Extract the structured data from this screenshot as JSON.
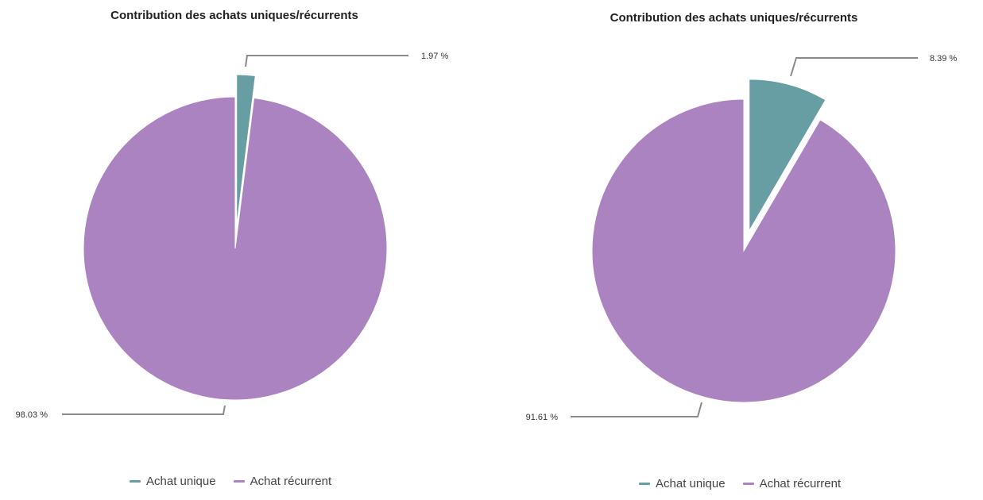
{
  "chart_data": [
    {
      "type": "pie",
      "title": "Contribution des achats uniques/récurrents",
      "categories": [
        "Achat unique",
        "Achat récurrent"
      ],
      "values": [
        1.97,
        98.03
      ],
      "labels": [
        "1.97 %",
        "98.03 %"
      ],
      "colors": [
        "#669ea3",
        "#ab83c0"
      ],
      "exploded": [
        "Achat unique"
      ],
      "legend": "bottom-center"
    },
    {
      "type": "pie",
      "title": "Contribution des achats uniques/récurrents",
      "categories": [
        "Achat unique",
        "Achat récurrent"
      ],
      "values": [
        8.39,
        91.61
      ],
      "labels": [
        "8.39 %",
        "91.61 %"
      ],
      "colors": [
        "#669ea3",
        "#ab83c0"
      ],
      "exploded": [
        "Achat unique"
      ],
      "legend": "bottom-center"
    }
  ]
}
